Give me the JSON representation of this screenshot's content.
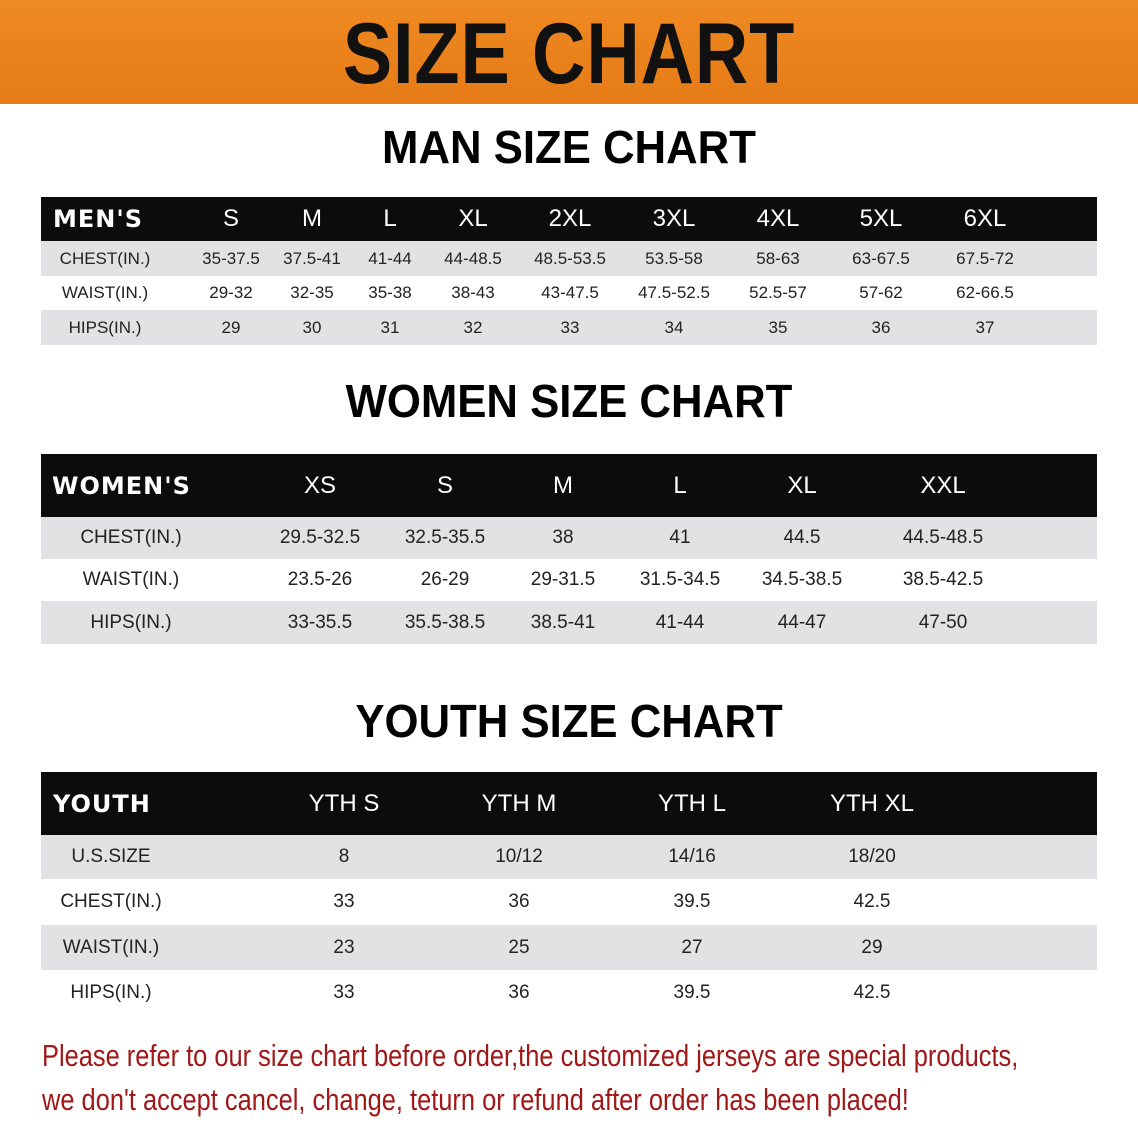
{
  "banner_title": "SIZE CHART",
  "men": {
    "title": "MAN SIZE CHART",
    "header": [
      "MEN'S",
      "S",
      "M",
      "L",
      "XL",
      "2XL",
      "3XL",
      "4XL",
      "5XL",
      "6XL"
    ],
    "rows": [
      [
        "CHEST(IN.)",
        "35-37.5",
        "37.5-41",
        "41-44",
        "44-48.5",
        "48.5-53.5",
        "53.5-58",
        "58-63",
        "63-67.5",
        "67.5-72"
      ],
      [
        "WAIST(IN.)",
        "29-32",
        "32-35",
        "35-38",
        "38-43",
        "43-47.5",
        "47.5-52.5",
        "52.5-57",
        "57-62",
        "62-66.5"
      ],
      [
        "HIPS(IN.)",
        "29",
        "30",
        "31",
        "32",
        "33",
        "34",
        "35",
        "36",
        "37"
      ]
    ]
  },
  "women": {
    "title": "WOMEN SIZE CHART",
    "header": [
      "WOMEN'S",
      "XS",
      "S",
      "M",
      "L",
      "XL",
      "XXL"
    ],
    "rows": [
      [
        "CHEST(IN.)",
        "29.5-32.5",
        "32.5-35.5",
        "38",
        "41",
        "44.5",
        "44.5-48.5"
      ],
      [
        "WAIST(IN.)",
        "23.5-26",
        "26-29",
        "29-31.5",
        "31.5-34.5",
        "34.5-38.5",
        "38.5-42.5"
      ],
      [
        "HIPS(IN.)",
        "33-35.5",
        "35.5-38.5",
        "38.5-41",
        "41-44",
        "44-47",
        "47-50"
      ]
    ]
  },
  "youth": {
    "title": "YOUTH SIZE CHART",
    "header": [
      "YOUTH",
      "YTH S",
      "YTH M",
      "YTH L",
      "YTH XL"
    ],
    "rows": [
      [
        "U.S.SIZE",
        "8",
        "10/12",
        "14/16",
        "18/20"
      ],
      [
        "CHEST(IN.)",
        "33",
        "36",
        "39.5",
        "42.5"
      ],
      [
        "WAIST(IN.)",
        "23",
        "25",
        "27",
        "29"
      ],
      [
        "HIPS(IN.)",
        "33",
        "36",
        "39.5",
        "42.5"
      ]
    ]
  },
  "notice": [
    "Please refer to our size chart before order,the customized jerseys are special products,",
    "we don't accept cancel, change, teturn or refund after order has been placed!"
  ],
  "colors": {
    "banner": "#e8801e",
    "header_row": "#0c0c0c",
    "stripe": "#e2e2e4",
    "notice": "#a01818"
  }
}
